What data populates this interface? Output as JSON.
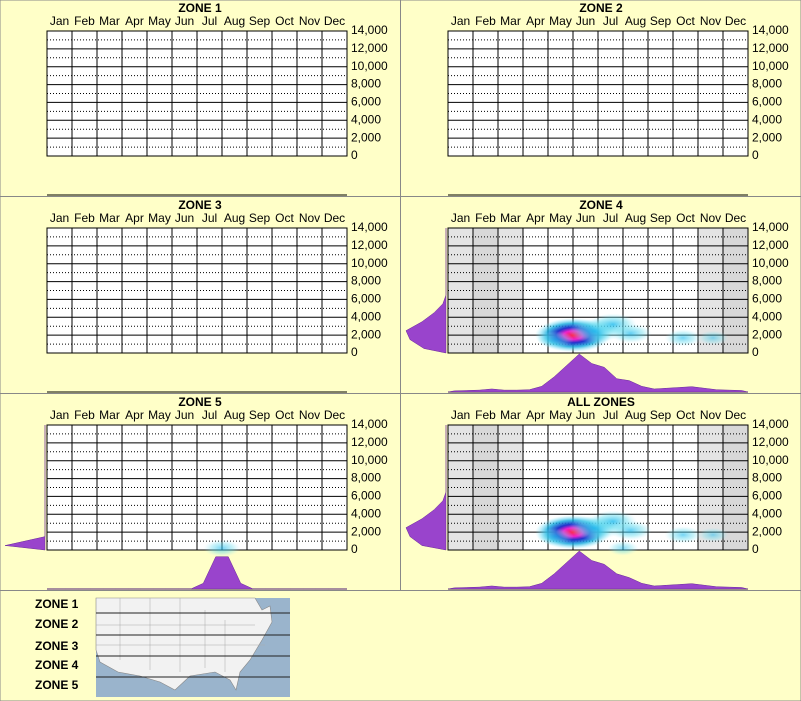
{
  "chart_data": [
    {
      "type": "heatmap",
      "title": "ZONE 1",
      "categories": [
        "Jan",
        "Feb",
        "Mar",
        "Apr",
        "May",
        "Jun",
        "Jul",
        "Aug",
        "Sep",
        "Oct",
        "Nov",
        "Dec"
      ],
      "ylim": [
        0,
        14000
      ],
      "yticks": [
        0,
        {
          "value": 2000,
          "label": "2,000"
        },
        {
          "value": 4000,
          "label": "4,000"
        },
        {
          "value": 6000,
          "label": "6,000"
        },
        {
          "value": 8000,
          "label": "8,000"
        },
        {
          "value": 10000,
          "label": "10,000"
        },
        {
          "value": 12000,
          "label": "12,000"
        },
        {
          "value": 14000,
          "label": "14,000"
        }
      ],
      "grid": true
    },
    {
      "type": "heatmap",
      "title": "ZONE 2",
      "categories": [
        "Jan",
        "Feb",
        "Mar",
        "Apr",
        "May",
        "Jun",
        "Jul",
        "Aug",
        "Sep",
        "Oct",
        "Nov",
        "Dec"
      ],
      "ylim": [
        0,
        14000
      ],
      "yticks": [
        0,
        {
          "value": 2000,
          "label": "2,000"
        },
        {
          "value": 4000,
          "label": "4,000"
        },
        {
          "value": 6000,
          "label": "6,000"
        },
        {
          "value": 8000,
          "label": "8,000"
        },
        {
          "value": 10000,
          "label": "10,000"
        },
        {
          "value": 12000,
          "label": "12,000"
        },
        {
          "value": 14000,
          "label": "14,000"
        }
      ],
      "grid": true
    },
    {
      "type": "heatmap",
      "title": "ZONE 3",
      "categories": [
        "Jan",
        "Feb",
        "Mar",
        "Apr",
        "May",
        "Jun",
        "Jul",
        "Aug",
        "Sep",
        "Oct",
        "Nov",
        "Dec"
      ],
      "ylim": [
        0,
        14000
      ],
      "yticks": [
        0,
        {
          "value": 2000,
          "label": "2,000"
        },
        {
          "value": 4000,
          "label": "4,000"
        },
        {
          "value": 6000,
          "label": "6,000"
        },
        {
          "value": 8000,
          "label": "8,000"
        },
        {
          "value": 10000,
          "label": "10,000"
        },
        {
          "value": 12000,
          "label": "12,000"
        },
        {
          "value": 14000,
          "label": "14,000"
        }
      ],
      "grid": true
    },
    {
      "type": "heatmap",
      "title": "ZONE 4",
      "categories": [
        "Jan",
        "Feb",
        "Mar",
        "Apr",
        "May",
        "Jun",
        "Jul",
        "Aug",
        "Sep",
        "Oct",
        "Nov",
        "Dec"
      ],
      "ylim": [
        0,
        14000
      ],
      "yticks": [
        0,
        {
          "value": 2000,
          "label": "2,000"
        },
        {
          "value": 4000,
          "label": "4,000"
        },
        {
          "value": 6000,
          "label": "6,000"
        },
        {
          "value": 8000,
          "label": "8,000"
        },
        {
          "value": 10000,
          "label": "10,000"
        },
        {
          "value": 12000,
          "label": "12,000"
        },
        {
          "value": 14000,
          "label": "14,000"
        }
      ],
      "grid": true,
      "shaded": [
        true,
        true,
        true,
        false,
        false,
        false,
        false,
        false,
        false,
        false,
        true,
        true
      ],
      "points": {
        "x": [
          5.0,
          5.9,
          6.6,
          7.3,
          4.3,
          9.4,
          10.6
        ],
        "y": [
          2000,
          2500,
          3200,
          2200,
          1500,
          1700,
          1700
        ],
        "intensity": [
          1.0,
          0.6,
          0.5,
          0.4,
          0.3,
          0.3,
          0.2
        ]
      },
      "x_density": [
        0.03,
        0.04,
        0.05,
        0.08,
        0.05,
        0.05,
        0.06,
        0.15,
        0.4,
        0.7,
        1.0,
        0.75,
        0.65,
        0.35,
        0.3,
        0.15,
        0.08,
        0.1,
        0.12,
        0.14,
        0.1,
        0.06,
        0.05,
        0.04
      ],
      "y_density": [
        0.55,
        0.9,
        1.0,
        0.6,
        0.3,
        0.08,
        0,
        0,
        0,
        0,
        0,
        0,
        0,
        0
      ]
    },
    {
      "type": "heatmap",
      "title": "ZONE 5",
      "categories": [
        "Jan",
        "Feb",
        "Mar",
        "Apr",
        "May",
        "Jun",
        "Jul",
        "Aug",
        "Sep",
        "Oct",
        "Nov",
        "Dec"
      ],
      "ylim": [
        0,
        14000
      ],
      "yticks": [
        0,
        {
          "value": 2000,
          "label": "2,000"
        },
        {
          "value": 4000,
          "label": "4,000"
        },
        {
          "value": 6000,
          "label": "6,000"
        },
        {
          "value": 8000,
          "label": "8,000"
        },
        {
          "value": 10000,
          "label": "10,000"
        },
        {
          "value": 12000,
          "label": "12,000"
        },
        {
          "value": 14000,
          "label": "14,000"
        }
      ],
      "grid": true,
      "points": {
        "x": [
          7.0
        ],
        "y": [
          200
        ],
        "intensity": [
          0.3
        ]
      },
      "x_density": [
        0,
        0,
        0,
        0,
        0,
        0,
        0,
        0,
        0,
        0,
        0,
        0,
        0.15,
        0.85,
        0.85,
        0.15,
        0,
        0,
        0,
        0,
        0,
        0,
        0,
        0
      ],
      "y_density": [
        1.0,
        0,
        0,
        0,
        0,
        0,
        0,
        0,
        0,
        0,
        0,
        0,
        0,
        0
      ]
    },
    {
      "type": "heatmap",
      "title": "ALL ZONES",
      "categories": [
        "Jan",
        "Feb",
        "Mar",
        "Apr",
        "May",
        "Jun",
        "Jul",
        "Aug",
        "Sep",
        "Oct",
        "Nov",
        "Dec"
      ],
      "ylim": [
        0,
        14000
      ],
      "yticks": [
        0,
        {
          "value": 2000,
          "label": "2,000"
        },
        {
          "value": 4000,
          "label": "4,000"
        },
        {
          "value": 6000,
          "label": "6,000"
        },
        {
          "value": 8000,
          "label": "8,000"
        },
        {
          "value": 10000,
          "label": "10,000"
        },
        {
          "value": 12000,
          "label": "12,000"
        },
        {
          "value": 14000,
          "label": "14,000"
        }
      ],
      "grid": true,
      "shaded": [
        true,
        true,
        true,
        false,
        false,
        false,
        false,
        false,
        false,
        false,
        true,
        true
      ],
      "points": {
        "x": [
          5.0,
          5.9,
          6.6,
          7.3,
          4.3,
          9.4,
          10.6,
          7.0
        ],
        "y": [
          2000,
          2500,
          3200,
          2200,
          1500,
          1700,
          1700,
          200
        ],
        "intensity": [
          1.0,
          0.6,
          0.5,
          0.4,
          0.3,
          0.3,
          0.2,
          0.2
        ]
      },
      "x_density": [
        0.03,
        0.04,
        0.05,
        0.08,
        0.05,
        0.05,
        0.06,
        0.15,
        0.4,
        0.7,
        1.0,
        0.75,
        0.65,
        0.4,
        0.3,
        0.15,
        0.08,
        0.1,
        0.12,
        0.14,
        0.1,
        0.06,
        0.05,
        0.04
      ],
      "y_density": [
        0.6,
        0.9,
        1.0,
        0.6,
        0.3,
        0.08,
        0,
        0,
        0,
        0,
        0,
        0,
        0,
        0
      ]
    }
  ],
  "legend": {
    "zones": [
      "ZONE 1",
      "ZONE 2",
      "ZONE 3",
      "ZONE 4",
      "ZONE 5"
    ]
  }
}
